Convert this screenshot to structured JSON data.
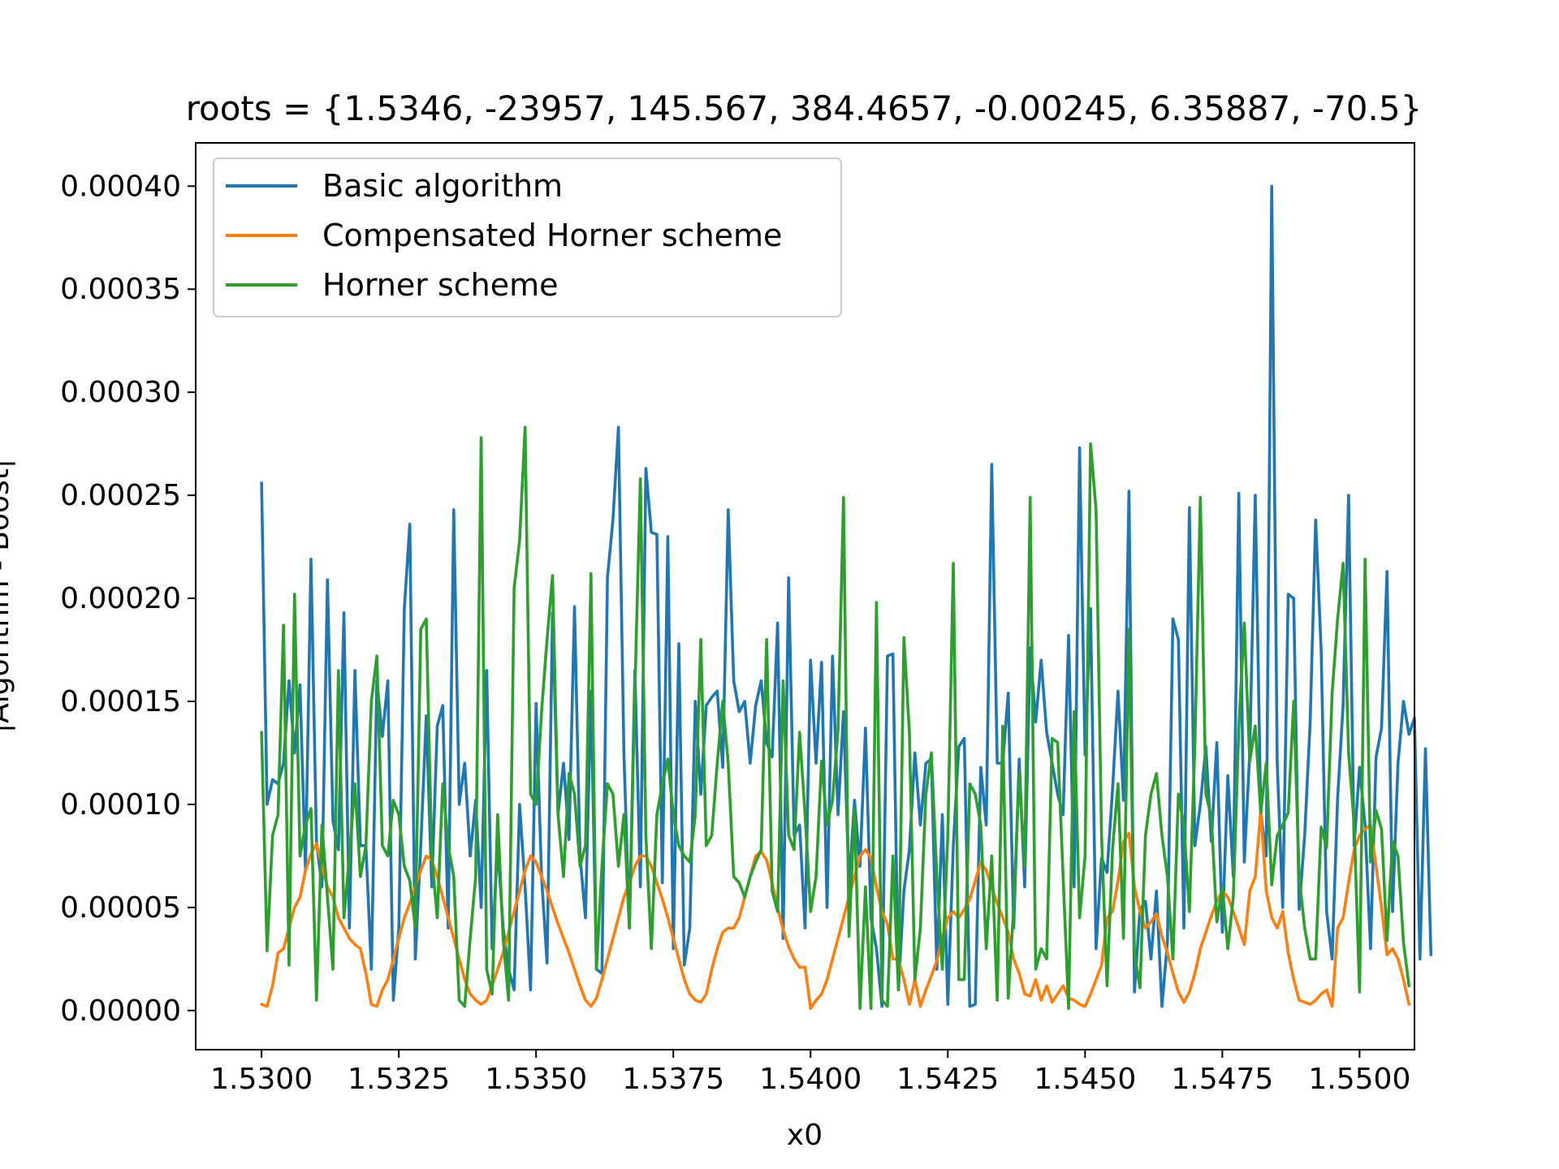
{
  "chart_data": {
    "type": "line",
    "title": "roots = {1.5346, -23957, 145.567, 384.4657, -0.00245, 6.35887, -70.5}",
    "xlabel": "x0",
    "ylabel": "|Algorithm - Boost|",
    "xlim": [
      1.5288,
      1.551
    ],
    "ylim": [
      -1.9e-05,
      0.000421
    ],
    "xticks": [
      1.53,
      1.5325,
      1.535,
      1.5375,
      1.54,
      1.5425,
      1.545,
      1.5475,
      1.55
    ],
    "xtick_labels": [
      "1.5300",
      "1.5325",
      "1.5350",
      "1.5375",
      "1.5400",
      "1.5425",
      "1.5450",
      "1.5475",
      "1.5500"
    ],
    "yticks": [
      0,
      5e-05,
      0.0001,
      0.00015,
      0.0002,
      0.00025,
      0.0003,
      0.00035,
      0.0004
    ],
    "ytick_labels": [
      "0.00000",
      "0.00005",
      "0.00010",
      "0.00015",
      "0.00020",
      "0.00025",
      "0.00030",
      "0.00035",
      "0.00040"
    ],
    "grid": false,
    "legend_position": "top-left",
    "x_start": 1.53,
    "x_step": 0.0001,
    "series": [
      {
        "name": "Basic algorithm",
        "color": "#1f77b4",
        "values": [
          0.000256,
          0.0001,
          0.000112,
          0.00011,
          0.00012,
          0.00016,
          0.000125,
          0.000158,
          6.8e-05,
          0.000219,
          8.2e-05,
          6e-05,
          0.000209,
          9.2e-05,
          7.8e-05,
          0.000193,
          4e-05,
          0.000165,
          8e-05,
          8e-05,
          2e-05,
          0.00016,
          0.000133,
          0.00016,
          5e-06,
          4e-05,
          0.000195,
          0.000236,
          2.5e-05,
          8e-05,
          0.000143,
          6e-05,
          0.000138,
          0.000148,
          4e-05,
          0.000243,
          0.0001,
          0.00012,
          7.5e-05,
          0.000102,
          5e-05,
          0.000165,
          3e-05,
          8e-05,
          4e-05,
          2e-05,
          1e-05,
          0.0001,
          6e-05,
          1e-05,
          0.000149,
          6.5e-05,
          2.3e-05,
          0.000193,
          9.5e-05,
          0.00012,
          8.3e-05,
          0.000196,
          7.5e-05,
          4.5e-05,
          0.000155,
          2e-05,
          1.8e-05,
          0.00021,
          0.000238,
          0.000283,
          0.000125,
          4e-05,
          0.000165,
          6e-05,
          0.000263,
          0.000232,
          0.000231,
          6.2e-05,
          0.00023,
          3e-05,
          0.000178,
          2.2e-05,
          4e-05,
          0.00015,
          0.000105,
          0.000148,
          0.000152,
          0.000155,
          0.000118,
          0.000243,
          0.00016,
          0.000145,
          0.00015,
          0.00012,
          0.000148,
          0.00016,
          0.00013,
          0.000123,
          0.000188,
          3.5e-05,
          0.00021,
          8.5e-05,
          9e-05,
          4e-05,
          0.00017,
          0.00012,
          0.000169,
          5e-05,
          0.000172,
          9.5e-05,
          0.000145,
          6e-05,
          0.000102,
          7e-05,
          0.000137,
          4.5e-05,
          3e-05,
          2e-06,
          0.000172,
          0.000173,
          1e-05,
          5.8e-05,
          7.8e-05,
          0.000125,
          9e-05,
          0.00012,
          0.000122,
          2e-05,
          9.5e-05,
          3e-06,
          8e-05,
          0.000128,
          0.000132,
          2e-06,
          3e-06,
          0.000118,
          9e-05,
          0.000265,
          0.00012,
          0.00012,
          0.000154,
          4e-05,
          0.000122,
          6e-05,
          0.000176,
          0.00014,
          0.00017,
          0.000135,
          0.00012,
          0.000105,
          9.5e-05,
          0.000182,
          6e-05,
          0.000273,
          0.000124,
          0.000195,
          3e-05,
          7.4e-05,
          6.7e-05,
          0.000107,
          0.000155,
          0.000102,
          0.000252,
          9e-06,
          4.9e-05,
          5.3e-05,
          2.5e-05,
          5.8e-05,
          2e-06,
          3.3e-05,
          0.00019,
          0.00018,
          4e-05,
          0.000244,
          8e-05,
          0.0001,
          0.000128,
          8.2e-05,
          0.00013,
          3.8e-05,
          0.000114,
          6.5e-05,
          0.000251,
          7.2e-05,
          0.000125,
          0.00025,
          9.6e-05,
          7.5e-05,
          0.0004,
          0.00012,
          5e-05,
          0.000202,
          0.0002,
          4.9e-05,
          8.5e-05,
          0.00014,
          0.000238,
          0.000175,
          4.8e-05,
          2.5e-05,
          0.000103,
          0.000148,
          0.00025,
          8e-05,
          0.000118,
          9e-05,
          3e-05,
          0.000123,
          0.000137,
          0.000213,
          4.8e-05,
          0.00012,
          0.00015,
          0.000134,
          0.000142,
          2.5e-05,
          0.000127,
          2.7e-05
        ]
      },
      {
        "name": "Compensated Horner scheme",
        "color": "#ff7f0e",
        "values": [
          3e-06,
          2e-06,
          1.2e-05,
          2.8e-05,
          3e-05,
          4e-05,
          5e-05,
          5.5e-05,
          6.8e-05,
          7.6e-05,
          8.1e-05,
          7e-05,
          6e-05,
          5.5e-05,
          4.5e-05,
          4e-05,
          3.5e-05,
          3.2e-05,
          3e-05,
          1.8e-05,
          3e-06,
          2e-06,
          1e-05,
          1.5e-05,
          2.5e-05,
          3.5e-05,
          4.5e-05,
          5.2e-05,
          6e-05,
          6.8e-05,
          7.5e-05,
          7.3e-05,
          6.5e-05,
          5.5e-05,
          4.5e-05,
          3.5e-05,
          2.5e-05,
          1.5e-05,
          8e-06,
          5e-06,
          3e-06,
          5e-06,
          1.2e-05,
          2e-05,
          2.8e-05,
          3.8e-05,
          4.8e-05,
          5.8e-05,
          6.8e-05,
          7.5e-05,
          7.2e-05,
          6.5e-05,
          5.8e-05,
          5e-05,
          4.2e-05,
          3.5e-05,
          2.8e-05,
          2e-05,
          1.2e-05,
          5e-06,
          2e-06,
          6e-06,
          1.5e-05,
          2.5e-05,
          3.5e-05,
          4.5e-05,
          5.5e-05,
          6.2e-05,
          7e-05,
          7.5e-05,
          7.5e-05,
          7e-05,
          6.2e-05,
          5.4e-05,
          4.5e-05,
          3.5e-05,
          2.5e-05,
          1.5e-05,
          8e-06,
          5e-06,
          4e-06,
          8e-06,
          2e-05,
          3e-05,
          3.8e-05,
          4e-05,
          4e-05,
          4.5e-05,
          5.5e-05,
          6.5e-05,
          7.5e-05,
          7.7e-05,
          7.3e-05,
          6.2e-05,
          5e-05,
          3.9e-05,
          3.1e-05,
          2.5e-05,
          2.1e-05,
          2.1e-05,
          1e-06,
          5e-06,
          8e-06,
          1.5e-05,
          2.5e-05,
          3.5e-05,
          4.5e-05,
          5.5e-05,
          6.5e-05,
          7.5e-05,
          7.8e-05,
          7.4e-05,
          6e-05,
          4.8e-05,
          4.2e-05,
          2.5e-05,
          2.5e-05,
          1.5e-05,
          3e-06,
          1.5e-05,
          2e-06,
          1e-05,
          1.7e-05,
          2.4e-05,
          3.5e-05,
          4.5e-05,
          4.8e-05,
          4.5e-05,
          4.9e-05,
          5.4e-05,
          6.3e-05,
          7.2e-05,
          6.8e-05,
          6e-05,
          5.2e-05,
          4.5e-05,
          3.8e-05,
          2.5e-05,
          1.8e-05,
          8e-06,
          7e-06,
          1.5e-05,
          5e-06,
          1.2e-05,
          4e-06,
          8e-06,
          1.2e-05,
          6e-06,
          5e-06,
          3e-06,
          2e-06,
          8e-06,
          1.5e-05,
          2.2e-05,
          4.5e-05,
          4.8e-05,
          6.3e-05,
          8.2e-05,
          8.6e-05,
          6e-05,
          4.8e-05,
          4e-05,
          4.3e-05,
          4.7e-05,
          3.6e-05,
          2.8e-05,
          1.8e-05,
          9e-06,
          4e-06,
          9e-06,
          1.8e-05,
          3e-05,
          3.8e-05,
          4.6e-05,
          5.3e-05,
          5.8e-05,
          5.5e-05,
          4.8e-05,
          4e-05,
          3.2e-05,
          5.8e-05,
          6.5e-05,
          9.7e-05,
          5.8e-05,
          4.5e-05,
          4e-05,
          4.8e-05,
          2.8e-05,
          1.5e-05,
          5e-06,
          4e-06,
          3e-06,
          5e-06,
          8e-06,
          1e-05,
          2e-06,
          4e-05,
          4.5e-05,
          6.2e-05,
          7.8e-05,
          8.5e-05,
          8.8e-05,
          9e-05,
          7e-05,
          5e-05,
          2.7e-05,
          3e-05,
          2.5e-05,
          1.5e-05,
          3e-06
        ]
      },
      {
        "name": "Horner scheme",
        "color": "#2ca02c",
        "values": [
          0.000135,
          2.9e-05,
          8.5e-05,
          9.5e-05,
          0.000187,
          2.2e-05,
          0.000202,
          7.5e-05,
          9e-05,
          9.8e-05,
          5e-06,
          9e-05,
          5.5e-05,
          2e-05,
          0.000165,
          4.5e-05,
          7.5e-05,
          0.00011,
          6.5e-05,
          8e-05,
          0.00015,
          0.000172,
          8e-05,
          7.5e-05,
          0.000102,
          9.5e-05,
          7e-05,
          6.3e-05,
          4e-05,
          0.000185,
          0.00019,
          7.5e-05,
          4.5e-05,
          0.00011,
          8e-05,
          6.5e-05,
          5e-06,
          2e-06,
          3.5e-05,
          6.5e-05,
          0.000278,
          2e-05,
          8e-06,
          9.5e-05,
          3.5e-05,
          5e-06,
          0.000205,
          0.000228,
          0.000283,
          0.000105,
          0.0001,
          0.000145,
          0.00018,
          0.000211,
          9.5e-05,
          6.5e-05,
          0.000115,
          0.000105,
          7e-05,
          8e-05,
          0.000212,
          2e-05,
          7e-05,
          0.00011,
          0.000105,
          7e-05,
          9.5e-05,
          4e-05,
          0.000155,
          0.000258,
          8.5e-05,
          3e-05,
          9.5e-05,
          0.00011,
          0.000122,
          9.5e-05,
          8e-05,
          7.5e-05,
          7.2e-05,
          9.5e-05,
          0.00018,
          8e-05,
          8.5e-05,
          0.00012,
          0.00015,
          0.00012,
          6.5e-05,
          6.2e-05,
          5.5e-05,
          6.5e-05,
          7.2e-05,
          7.8e-05,
          0.00018,
          5.8e-05,
          4.8e-05,
          0.00016,
          8.5e-05,
          7.8e-05,
          0.000135,
          9.5e-05,
          4.8e-05,
          6.5e-05,
          0.000121,
          9e-05,
          0.000102,
          0.000136,
          0.000249,
          3.6e-05,
          9.8e-05,
          1e-06,
          6e-05,
          1e-06,
          0.000198,
          5e-06,
          2e-06,
          7.5e-05,
          1e-05,
          0.000181,
          0.000135,
          1.5e-05,
          4e-05,
          0.000105,
          0.000125,
          6.5e-05,
          2e-05,
          8.5e-05,
          0.000217,
          1.5e-05,
          1.5e-05,
          0.00011,
          0.000105,
          9e-05,
          3e-05,
          7.5e-05,
          5e-06,
          0.000138,
          6e-06,
          5e-05,
          0.000115,
          7e-05,
          0.000249,
          2e-05,
          3e-05,
          2.5e-05,
          0.000132,
          0.00013,
          6.5e-05,
          1e-06,
          0.000145,
          4.5e-05,
          7.5e-05,
          0.000275,
          0.000243,
          8.5e-05,
          1.2e-05,
          7.8e-05,
          0.00011,
          3.5e-05,
          0.000185,
          2.8e-05,
          1.1e-05,
          8.5e-05,
          0.000105,
          0.000115,
          8.5e-05,
          6.5e-05,
          2.5e-05,
          0.000105,
          9e-05,
          4.8e-05,
          0.000129,
          0.000249,
          0.000105,
          9.4e-05,
          4.3e-05,
          6e-05,
          3e-05,
          5.5e-05,
          0.000137,
          0.000188,
          0.000121,
          0.000138,
          9.6e-05,
          0.00012,
          6.1e-05,
          8.5e-05,
          9e-05,
          9.6e-05,
          0.00015,
          6.5e-05,
          4e-05,
          2.5e-05,
          2.5e-05,
          8.9e-05,
          7.9e-05,
          0.000154,
          0.00019,
          0.000217,
          0.000125,
          9.1e-05,
          9e-06,
          0.000219,
          7.2e-05,
          9.7e-05,
          8.8e-05,
          3.4e-05,
          8.2e-05,
          7.5e-05,
          3.3e-05,
          1.2e-05
        ]
      }
    ]
  }
}
